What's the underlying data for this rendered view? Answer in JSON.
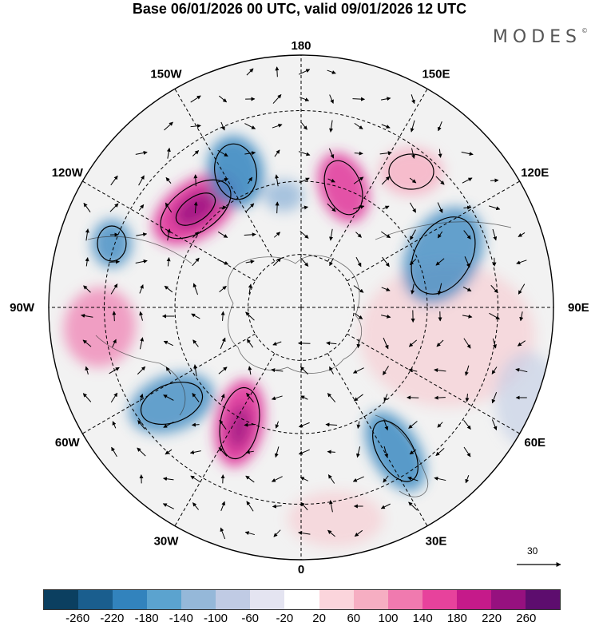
{
  "header": {
    "title": "Base 06/01/2026 00 UTC, valid 09/01/2026 12 UTC",
    "brand": "MODES",
    "brand_mark": "©"
  },
  "map": {
    "longitude_labels": [
      "180",
      "150E",
      "120E",
      "90E",
      "60E",
      "30E",
      "0",
      "30W",
      "60W",
      "90W",
      "120W",
      "150W"
    ],
    "positive_color": "#e0359a",
    "negative_color": "#3d8bc2"
  },
  "wind_scale": {
    "value": "30"
  },
  "colorbar": {
    "colors": [
      "#0b3f60",
      "#1a5e8e",
      "#3283bd",
      "#5ba3cf",
      "#95b8d9",
      "#c0cbe4",
      "#e4e4f1",
      "#ffffff",
      "#fbd5dc",
      "#f6aec2",
      "#f07aaf",
      "#e7429c",
      "#c51a8a",
      "#96117f",
      "#5d0d6e"
    ],
    "labels": [
      "-260",
      "-220",
      "-180",
      "-140",
      "-100",
      "-60",
      "-20",
      "20",
      "60",
      "100",
      "140",
      "180",
      "220",
      "260"
    ]
  }
}
